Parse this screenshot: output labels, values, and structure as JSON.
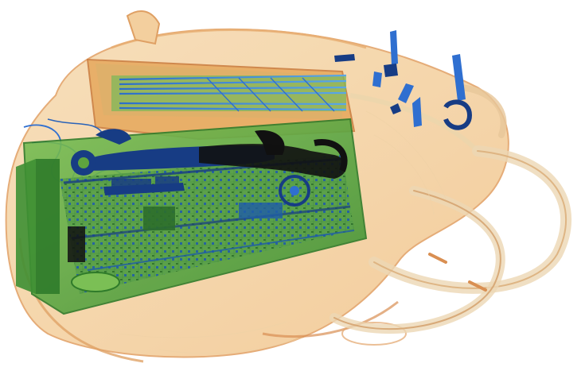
{
  "image": {
    "kind": "x-ray baggage scan",
    "palette": {
      "background": "#ffffff",
      "organic_light": "#f2c58f",
      "organic_mid": "#e4a467",
      "organic_dark": "#c97a3c",
      "inorganic_light": "#a7cf7f",
      "inorganic_mid": "#5ea43e",
      "inorganic_dark": "#2f7b2a",
      "metal_light": "#5aa7e6",
      "metal_mid": "#2f6fd0",
      "metal_dark": "#173c84",
      "dense": "#111111"
    },
    "objects": [
      {
        "name": "backpack",
        "material": "organic"
      },
      {
        "name": "laptop",
        "material": "mixed"
      },
      {
        "name": "wrench",
        "material": "metal"
      },
      {
        "name": "cables",
        "material": "metal"
      },
      {
        "name": "carabiner-clip",
        "material": "metal"
      },
      {
        "name": "bag-straps",
        "material": "organic"
      }
    ]
  }
}
